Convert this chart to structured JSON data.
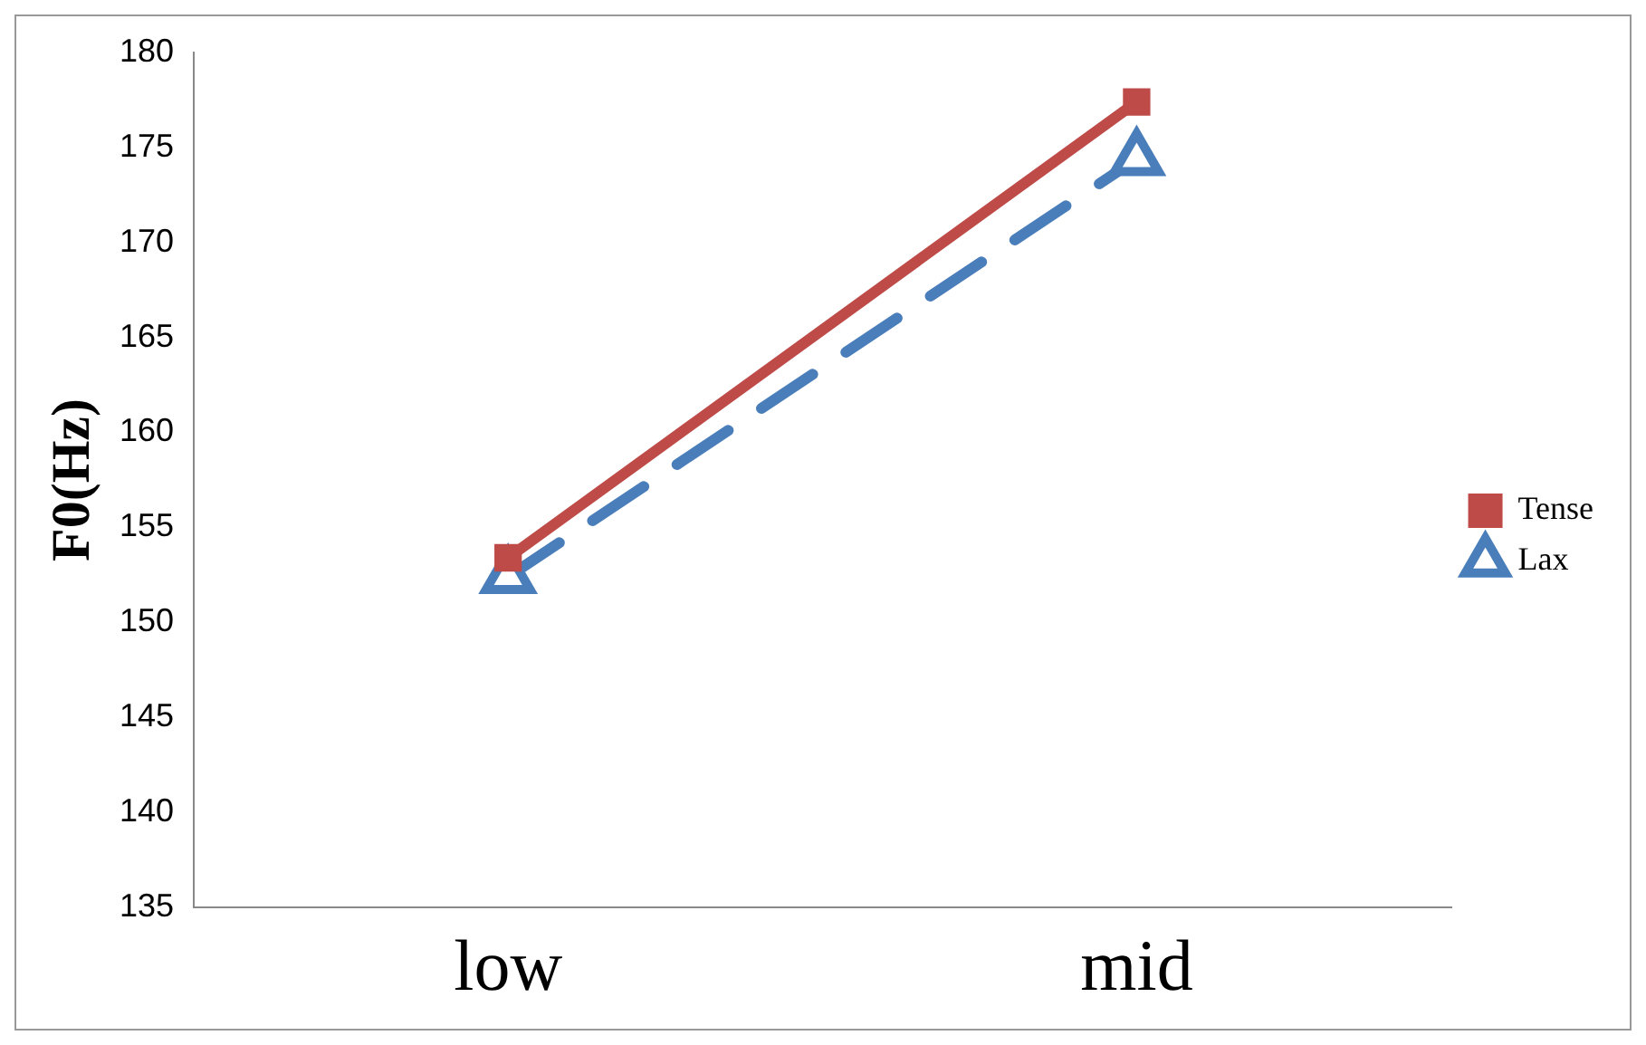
{
  "chart_data": {
    "type": "line",
    "ylabel": "F0(Hz)",
    "categories": [
      "low",
      "mid"
    ],
    "series": [
      {
        "name": "Lax",
        "color": "#4a7ebb",
        "values": [
          152.4,
          174.4
        ],
        "marker": "triangle",
        "line_style": "dashed"
      },
      {
        "name": "Tense",
        "color": "#be4b48",
        "values": [
          153.4,
          177.4
        ],
        "marker": "square",
        "line_style": "solid"
      }
    ],
    "ylim": [
      135,
      180
    ],
    "yticks": [
      135,
      140,
      145,
      150,
      155,
      160,
      165,
      170,
      175,
      180
    ],
    "grid": false,
    "legend": "right"
  }
}
